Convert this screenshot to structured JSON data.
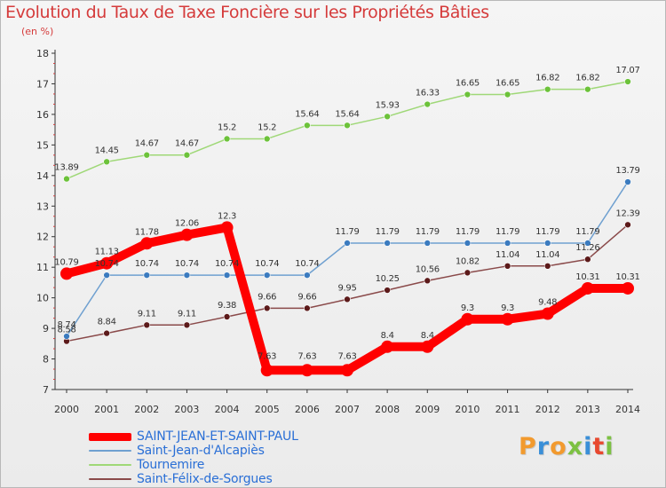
{
  "header": {
    "title": "Evolution du Taux de Taxe Foncière sur les Propriétés Bâties",
    "subtitle": "(en %)"
  },
  "logo": {
    "text": "Proxiti",
    "colors": [
      "#f29a2e",
      "#3a8fd8",
      "#f29a2e",
      "#7cc142",
      "#3a8fd8",
      "#e8482f",
      "#7cc142"
    ]
  },
  "chart_data": {
    "type": "line",
    "title": "Evolution du Taux de Taxe Foncière sur les Propriétés Bâties",
    "ylabel": "(en %)",
    "xlabel": "",
    "x": [
      "2000",
      "2001",
      "2002",
      "2003",
      "2004",
      "2005",
      "2006",
      "2007",
      "2008",
      "2009",
      "2010",
      "2011",
      "2012",
      "2013",
      "2014"
    ],
    "ylim": [
      7,
      18
    ],
    "yticks": [
      "7",
      "8",
      "9",
      "10",
      "11",
      "12",
      "13",
      "14",
      "15",
      "16",
      "17",
      "18"
    ],
    "grid": false,
    "legend_position": "bottom-left",
    "series": [
      {
        "name": "SAINT-JEAN-ET-SAINT-PAUL",
        "color": "#ff0000",
        "width": 10,
        "marker_size": 7,
        "values": [
          10.79,
          11.13,
          11.78,
          12.06,
          12.3,
          7.63,
          7.63,
          7.63,
          8.4,
          8.4,
          9.3,
          9.3,
          9.48,
          10.31,
          10.31
        ],
        "labels": [
          "10.79",
          "11.13",
          "11.78",
          "12.06",
          "12.3",
          "7.63",
          "7.63",
          "7.63",
          "8.4",
          "8.4",
          "9.3",
          "9.3",
          "9.48",
          "10.31",
          "10.31"
        ]
      },
      {
        "name": "Saint-Jean-d'Alcapiès",
        "color": "#6fa0d0",
        "width": 1.5,
        "marker_size": 3.5,
        "marker_color": "#3b7bbf",
        "values": [
          8.74,
          10.74,
          10.74,
          10.74,
          10.74,
          10.74,
          10.74,
          11.79,
          11.79,
          11.79,
          11.79,
          11.79,
          11.79,
          11.79,
          13.79
        ],
        "labels": [
          "8.74",
          "10.74",
          "10.74",
          "10.74",
          "10.74",
          "10.74",
          "10.74",
          "11.79",
          "11.79",
          "11.79",
          "11.79",
          "11.79",
          "11.79",
          "11.79",
          "13.79"
        ]
      },
      {
        "name": "Tournemire",
        "color": "#9fd877",
        "width": 1.5,
        "marker_size": 3.5,
        "marker_color": "#6cc23a",
        "values": [
          13.89,
          14.45,
          14.67,
          14.67,
          15.2,
          15.2,
          15.64,
          15.64,
          15.93,
          16.33,
          16.65,
          16.65,
          16.82,
          16.82,
          17.07
        ],
        "labels": [
          "13.89",
          "14.45",
          "14.67",
          "14.67",
          "15.2",
          "15.2",
          "15.64",
          "15.64",
          "15.93",
          "16.33",
          "16.65",
          "16.65",
          "16.82",
          "16.82",
          "17.07"
        ]
      },
      {
        "name": "Saint-Félix-de-Sorgues",
        "color": "#8a4a4a",
        "width": 1.5,
        "marker_size": 3.5,
        "marker_color": "#5c1a1a",
        "values": [
          8.58,
          8.84,
          9.11,
          9.11,
          9.38,
          9.66,
          9.66,
          9.95,
          10.25,
          10.56,
          10.82,
          11.04,
          11.04,
          11.26,
          12.39
        ],
        "labels": [
          "8.58",
          "8.84",
          "9.11",
          "9.11",
          "9.38",
          "9.66",
          "9.66",
          "9.95",
          "10.25",
          "10.56",
          "10.82",
          "11.04",
          "11.04",
          "11.26",
          "12.39"
        ]
      }
    ]
  }
}
